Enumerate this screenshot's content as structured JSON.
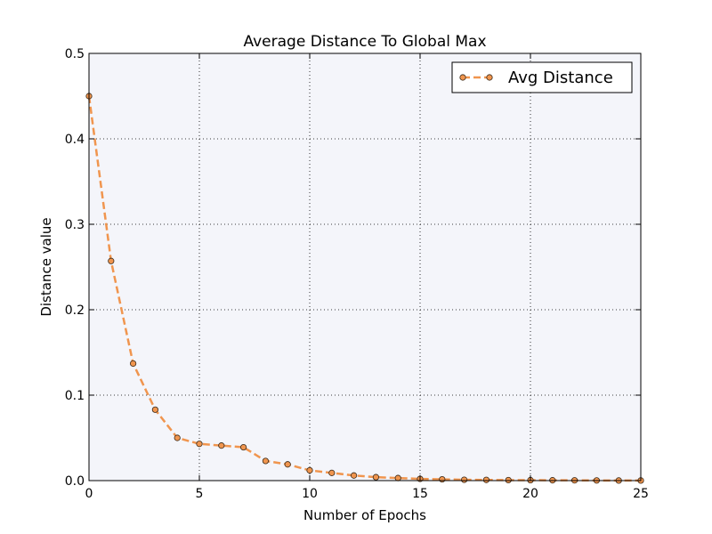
{
  "chart_data": {
    "type": "line",
    "title": "Average Distance To Global Max",
    "xlabel": "Number of Epochs",
    "ylabel": "Distance value",
    "xlim": [
      0,
      25
    ],
    "ylim": [
      0,
      0.5
    ],
    "xticks": [
      0,
      5,
      10,
      15,
      20,
      25
    ],
    "xtick_labels": [
      "0",
      "5",
      "10",
      "15",
      "20",
      "25"
    ],
    "yticks": [
      0,
      0.1,
      0.2,
      0.3,
      0.4,
      0.5
    ],
    "ytick_labels": [
      "0.0",
      "0.1",
      "0.2",
      "0.3",
      "0.4",
      "0.5"
    ],
    "grid": true,
    "legend_position": "top-right",
    "background_color": "#f4f5fa",
    "series": [
      {
        "name": "Avg Distance",
        "color": "#f0954e",
        "marker_edge": "#3a2a1a",
        "line_style": "dashed",
        "marker": "circle",
        "x": [
          0,
          1,
          2,
          3,
          4,
          5,
          6,
          7,
          8,
          9,
          10,
          11,
          12,
          13,
          14,
          15,
          16,
          17,
          18,
          19,
          20,
          21,
          22,
          23,
          24,
          25
        ],
        "values": [
          0.45,
          0.257,
          0.137,
          0.083,
          0.05,
          0.043,
          0.041,
          0.039,
          0.023,
          0.019,
          0.012,
          0.009,
          0.006,
          0.004,
          0.003,
          0.002,
          0.0015,
          0.001,
          0.0008,
          0.0006,
          0.0005,
          0.0004,
          0.0003,
          0.0002,
          0.0001,
          0.0001
        ]
      }
    ]
  }
}
